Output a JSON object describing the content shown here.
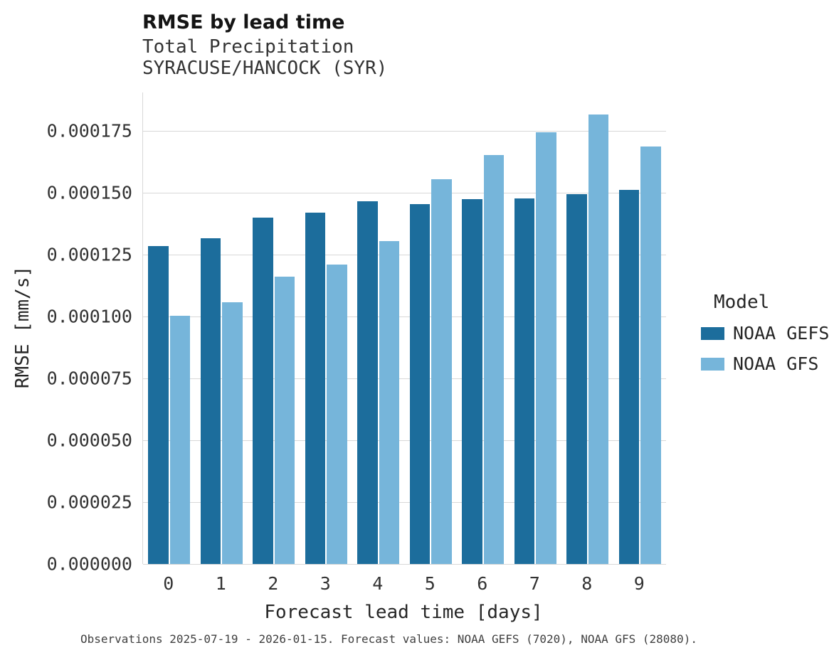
{
  "chart_data": {
    "type": "bar",
    "title": "RMSE by lead time",
    "subtitle": [
      "Total Precipitation",
      "SYRACUSE/HANCOCK (SYR)"
    ],
    "xlabel": "Forecast lead time [days]",
    "ylabel": "RMSE [mm/s]",
    "categories": [
      "0",
      "1",
      "2",
      "3",
      "4",
      "5",
      "6",
      "7",
      "8",
      "9"
    ],
    "series": [
      {
        "name": "NOAA GEFS",
        "color": "#1c6d9c",
        "values": [
          0.0001285,
          0.0001315,
          0.00014,
          0.000142,
          0.0001465,
          0.0001455,
          0.0001475,
          0.0001478,
          0.0001495,
          0.000151
        ]
      },
      {
        "name": "NOAA GFS",
        "color": "#76b5da",
        "values": [
          0.0001003,
          0.0001057,
          0.0001162,
          0.000121,
          0.0001305,
          0.0001555,
          0.0001652,
          0.0001745,
          0.0001815,
          0.0001688
        ]
      }
    ],
    "ylim": [
      0,
      0.0001905
    ],
    "ytick_values": [
      0,
      2.5e-05,
      5e-05,
      7.5e-05,
      0.0001,
      0.000125,
      0.00015,
      0.000175
    ],
    "ytick_labels": [
      "0.000000",
      "0.000025",
      "0.000050",
      "0.000075",
      "0.000100",
      "0.000125",
      "0.000150",
      "0.000175"
    ],
    "grid": "horizontal",
    "legend_title": "Model",
    "legend_position": "right",
    "caption": "Observations 2025-07-19 - 2026-01-15. Forecast values: NOAA GEFS (7020), NOAA GFS (28080)."
  }
}
